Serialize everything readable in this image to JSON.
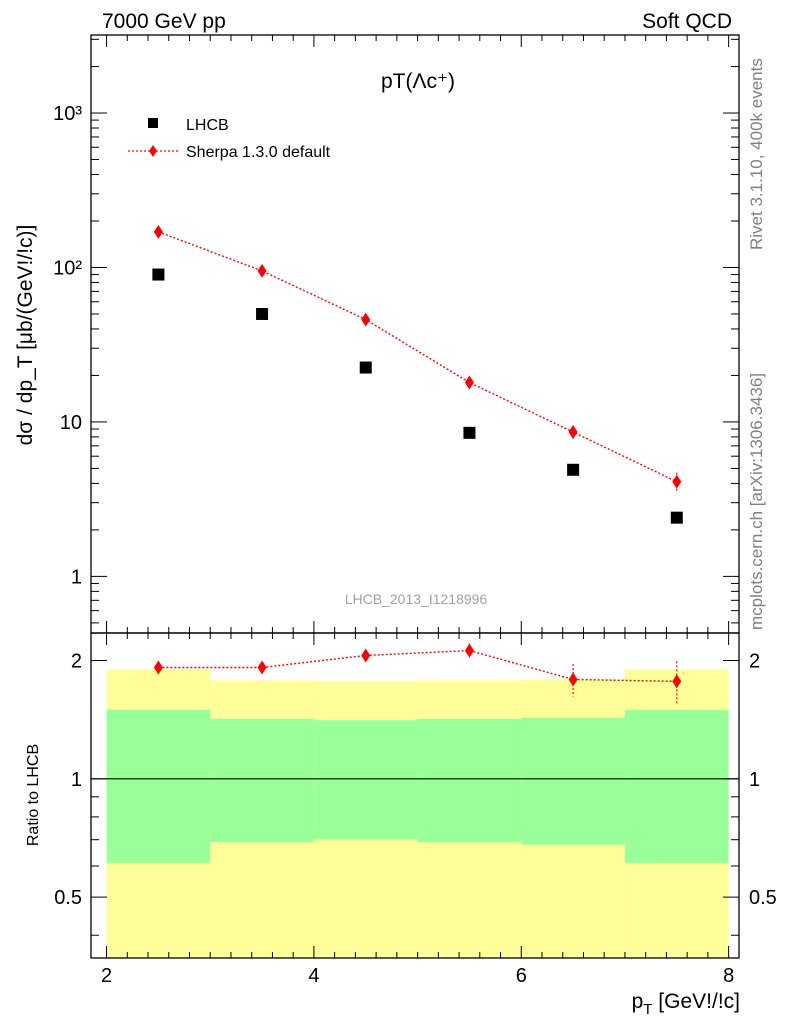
{
  "header": {
    "left": "7000 GeV pp",
    "right": "Soft QCD"
  },
  "side": {
    "rivet": "Rivet 3.1.10,  400k events",
    "source": "mcplots.cern.ch [arXiv:1306.3436]"
  },
  "analysis_id": "LHCB_2013_I1218996",
  "colors": {
    "data": "#000000",
    "mc": "#ff0000",
    "band_inner": "#99ff99",
    "band_outer": "#ffff99"
  },
  "chart_data": [
    {
      "type": "scatter",
      "title": "pT(Λc⁺)",
      "xlabel": "p_T [GeV!/!c]",
      "ylabel": "dσ / dp_T [μb/(GeV!/!c)]",
      "y_scale": "log",
      "xlim": [
        1.85,
        8.1
      ],
      "ylim": [
        0.43,
        3200
      ],
      "x_tick_labels": [
        "2",
        "4",
        "6",
        "8"
      ],
      "y_tick_labels": [
        "1",
        "10",
        "10²",
        "10³"
      ],
      "legend_position": "top-left",
      "series": [
        {
          "name": "LHCB",
          "marker": "square",
          "x": [
            2.5,
            3.5,
            4.5,
            5.5,
            6.5,
            7.5
          ],
          "y": [
            90,
            50,
            22.5,
            8.5,
            4.9,
            2.4
          ]
        },
        {
          "name": "Sherpa 1.3.0 default",
          "marker": "diamond",
          "line": "dotted",
          "x": [
            2.5,
            3.5,
            4.5,
            5.5,
            6.5,
            7.5
          ],
          "y": [
            170,
            95,
            46,
            18,
            8.6,
            4.1
          ],
          "y_err": [
            8,
            4,
            2.5,
            1.2,
            0.8,
            0.6
          ]
        }
      ]
    },
    {
      "type": "scatter",
      "ylabel": "Ratio to LHCB",
      "xlabel": "p_T [GeV!/!c]",
      "xlim": [
        1.85,
        8.1
      ],
      "ylim": [
        0.35,
        2.35
      ],
      "x_tick_labels": [
        "2",
        "4",
        "6",
        "8"
      ],
      "y_tick_labels": [
        "0.5",
        "1",
        "2"
      ],
      "reference_line": 1,
      "bands": [
        {
          "x_low": 2,
          "x_high": 3,
          "inner": [
            0.61,
            1.5
          ],
          "outer": [
            0,
            1.9
          ]
        },
        {
          "x_low": 3,
          "x_high": 4,
          "inner": [
            0.69,
            1.42
          ],
          "outer": [
            0,
            1.78
          ]
        },
        {
          "x_low": 4,
          "x_high": 5,
          "inner": [
            0.7,
            1.41
          ],
          "outer": [
            0,
            1.77
          ]
        },
        {
          "x_low": 5,
          "x_high": 6,
          "inner": [
            0.69,
            1.42
          ],
          "outer": [
            0,
            1.78
          ]
        },
        {
          "x_low": 6,
          "x_high": 7,
          "inner": [
            0.68,
            1.43
          ],
          "outer": [
            0,
            1.79
          ]
        },
        {
          "x_low": 7,
          "x_high": 8,
          "inner": [
            0.61,
            1.5
          ],
          "outer": [
            0,
            1.9
          ]
        }
      ],
      "series": [
        {
          "name": "Sherpa 1.3.0 default",
          "marker": "diamond",
          "x": [
            2.5,
            3.5,
            4.5,
            5.5,
            6.5,
            7.5
          ],
          "y": [
            1.92,
            1.92,
            2.06,
            2.12,
            1.79,
            1.77
          ],
          "y_err": [
            0.04,
            0.04,
            0.07,
            0.09,
            0.17,
            0.22
          ]
        }
      ]
    }
  ]
}
